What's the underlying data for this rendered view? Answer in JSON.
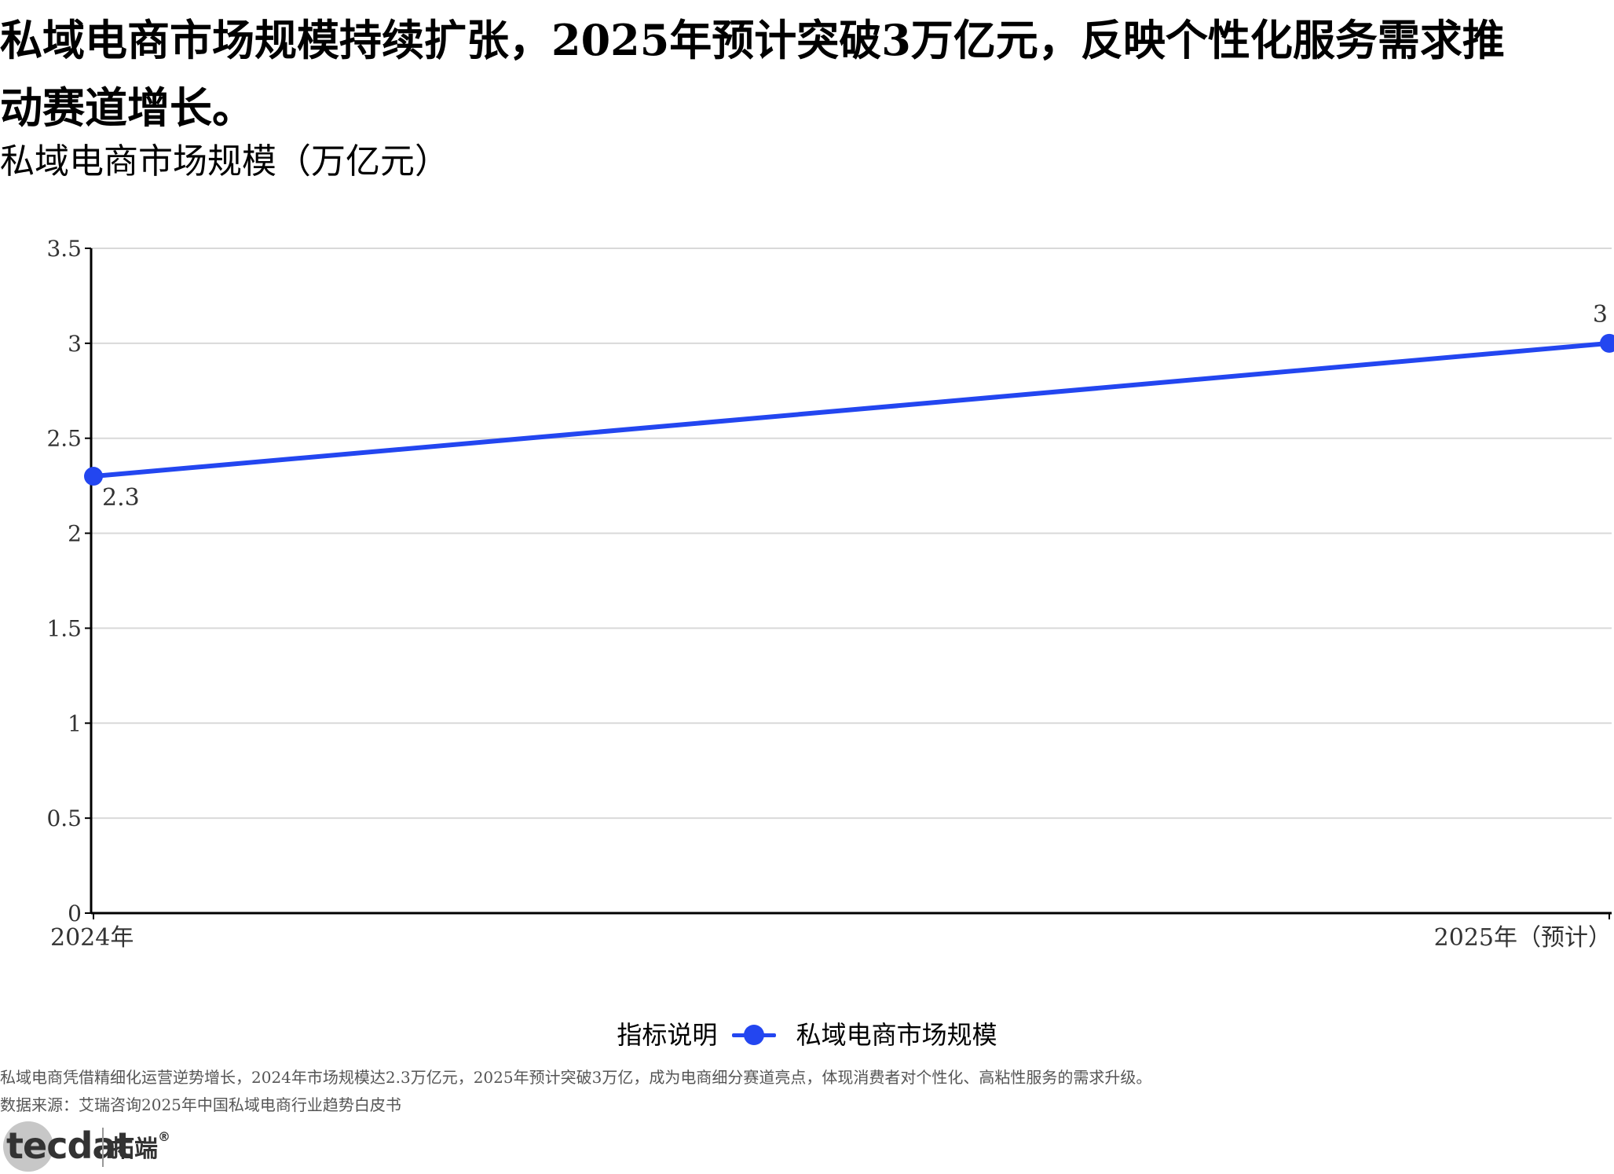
{
  "headline": "私域电商市场规模持续扩张，2025年预计突破3万亿元，反映个性化服务需求推动赛道增长。",
  "chart_data": {
    "type": "line",
    "title": "私域电商市场规模（万亿元）",
    "categories": [
      "2024年",
      "2025年（预计）"
    ],
    "series": [
      {
        "name": "私域电商市场规模",
        "values": [
          2.3,
          3
        ],
        "labels": [
          "2.3",
          "3"
        ]
      }
    ],
    "yticks": [
      "0",
      "0.5",
      "1",
      "1.5",
      "2",
      "2.5",
      "3",
      "3.5"
    ],
    "ylim": [
      0,
      3.5
    ],
    "grid": true,
    "legend_position": "bottom",
    "legend_title": "指标说明"
  },
  "colors": {
    "series": "#2346f0",
    "grid": "#d9d9d9",
    "axis": "#000000"
  },
  "notes": {
    "description": "私域电商凭借精细化运营逆势增长，2024年市场规模达2.3万亿元，2025年预计突破3万亿，成为电商细分赛道亮点，体现消费者对个性化、高粘性服务的需求升级。",
    "source": "数据来源：艾瑞咨询2025年中国私域电商行业趋势白皮书"
  },
  "logo": {
    "text": "tecdat",
    "cn": "拓端",
    "reg": "®"
  }
}
